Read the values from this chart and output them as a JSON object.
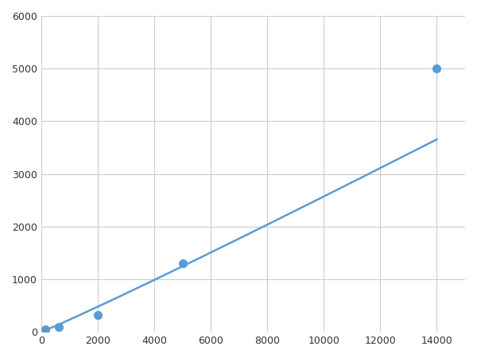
{
  "x_points": [
    156,
    625,
    2000,
    5000,
    14000
  ],
  "y_points": [
    50,
    100,
    313,
    1300,
    5000
  ],
  "line_color": "#5b9bd5",
  "marker_color": "#5b9bd5",
  "marker_size": 7,
  "line_width": 1.8,
  "xlim": [
    0,
    15000
  ],
  "ylim": [
    0,
    6000
  ],
  "xticks": [
    0,
    2000,
    4000,
    6000,
    8000,
    10000,
    12000,
    14000
  ],
  "yticks": [
    0,
    1000,
    2000,
    3000,
    4000,
    5000,
    6000
  ],
  "grid": true,
  "background_color": "#ffffff",
  "figure_facecolor": "#ffffff"
}
